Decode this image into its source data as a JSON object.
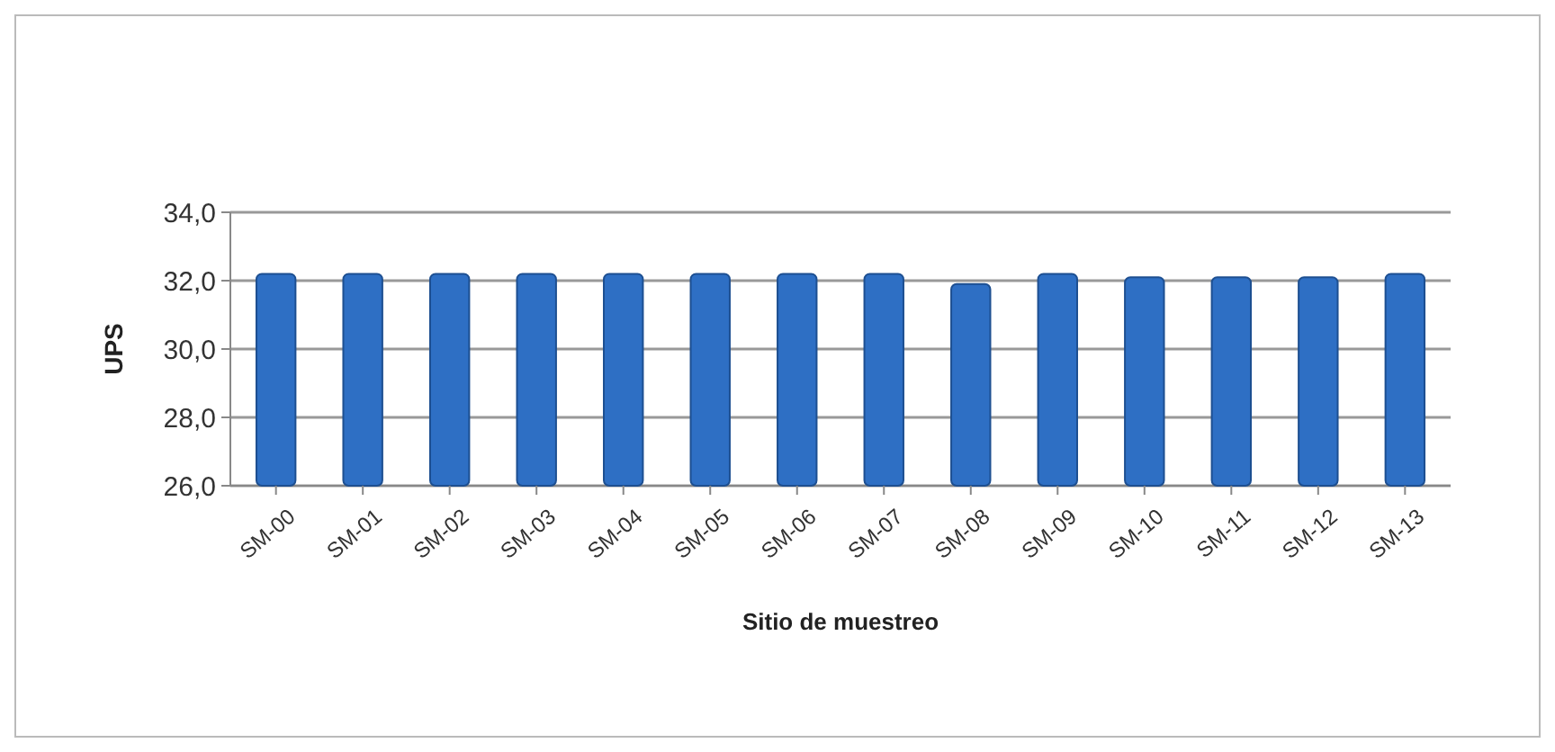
{
  "chart_data": {
    "type": "bar",
    "xlabel": "Sitio de muestreo",
    "ylabel": "UPS",
    "categories": [
      "SM-00",
      "SM-01",
      "SM-02",
      "SM-03",
      "SM-04",
      "SM-05",
      "SM-06",
      "SM-07",
      "SM-08",
      "SM-09",
      "SM-10",
      "SM-11",
      "SM-12",
      "SM-13"
    ],
    "values": [
      32.2,
      32.2,
      32.2,
      32.2,
      32.2,
      32.2,
      32.2,
      32.2,
      31.9,
      32.2,
      32.1,
      32.1,
      32.1,
      32.2
    ],
    "color": "#2e6fc4",
    "ylim": [
      26,
      34
    ],
    "yticks": [
      {
        "value": 26,
        "label": "26,0"
      },
      {
        "value": 28,
        "label": "28,0"
      },
      {
        "value": 30,
        "label": "30,0"
      },
      {
        "value": 32,
        "label": "32,0"
      },
      {
        "value": 34,
        "label": "34,0"
      }
    ],
    "grid": true
  }
}
